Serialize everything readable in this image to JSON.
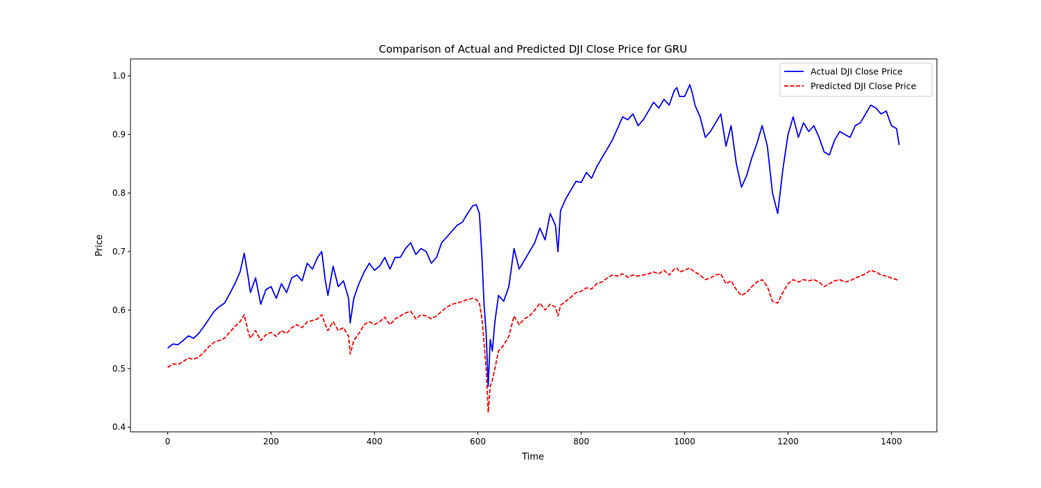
{
  "chart_data": {
    "type": "line",
    "title": "Comparison of Actual and Predicted DJI Close Price for GRU",
    "xlabel": "Time",
    "ylabel": "Price",
    "xlim": [
      -72,
      1488
    ],
    "ylim": [
      0.392,
      1.029
    ],
    "x_ticks": [
      0,
      200,
      400,
      600,
      800,
      1000,
      1200,
      1400
    ],
    "y_ticks": [
      0.4,
      0.5,
      0.6,
      0.7,
      0.8,
      0.9,
      1.0
    ],
    "y_tick_labels": [
      "0.4",
      "0.5",
      "0.6",
      "0.7",
      "0.8",
      "0.9",
      "1.0"
    ],
    "grid": false,
    "legend_position": "top-right",
    "series": [
      {
        "name": "Actual DJI Close Price",
        "color": "#0000ff",
        "style": "solid",
        "x": [
          0,
          10,
          20,
          30,
          40,
          50,
          60,
          70,
          80,
          90,
          100,
          110,
          120,
          130,
          140,
          148,
          155,
          160,
          170,
          180,
          190,
          200,
          210,
          220,
          230,
          240,
          250,
          260,
          270,
          280,
          290,
          298,
          305,
          310,
          320,
          330,
          340,
          350,
          353,
          360,
          370,
          380,
          390,
          400,
          410,
          420,
          430,
          440,
          450,
          460,
          470,
          480,
          490,
          500,
          510,
          520,
          530,
          540,
          550,
          560,
          570,
          580,
          590,
          597,
          603,
          608,
          612,
          616,
          620,
          624,
          628,
          633,
          640,
          650,
          660,
          670,
          680,
          690,
          700,
          710,
          720,
          730,
          740,
          750,
          755,
          760,
          770,
          780,
          790,
          800,
          810,
          820,
          830,
          840,
          850,
          860,
          870,
          880,
          890,
          900,
          910,
          920,
          930,
          940,
          950,
          960,
          970,
          980,
          985,
          990,
          1000,
          1010,
          1015,
          1020,
          1030,
          1040,
          1050,
          1060,
          1070,
          1080,
          1090,
          1100,
          1110,
          1120,
          1130,
          1140,
          1150,
          1160,
          1170,
          1180,
          1190,
          1200,
          1210,
          1220,
          1230,
          1240,
          1250,
          1260,
          1270,
          1280,
          1290,
          1300,
          1310,
          1320,
          1330,
          1340,
          1350,
          1360,
          1370,
          1380,
          1390,
          1400,
          1410,
          1415
        ],
        "y": [
          0.535,
          0.542,
          0.541,
          0.548,
          0.556,
          0.552,
          0.56,
          0.572,
          0.585,
          0.598,
          0.606,
          0.612,
          0.628,
          0.645,
          0.665,
          0.697,
          0.66,
          0.63,
          0.655,
          0.61,
          0.635,
          0.64,
          0.62,
          0.645,
          0.63,
          0.655,
          0.66,
          0.65,
          0.68,
          0.67,
          0.69,
          0.7,
          0.65,
          0.625,
          0.675,
          0.64,
          0.65,
          0.62,
          0.578,
          0.62,
          0.645,
          0.665,
          0.68,
          0.668,
          0.675,
          0.69,
          0.67,
          0.69,
          0.69,
          0.705,
          0.715,
          0.695,
          0.705,
          0.7,
          0.68,
          0.69,
          0.715,
          0.725,
          0.735,
          0.745,
          0.75,
          0.765,
          0.778,
          0.78,
          0.765,
          0.69,
          0.61,
          0.56,
          0.47,
          0.55,
          0.53,
          0.58,
          0.625,
          0.615,
          0.64,
          0.705,
          0.67,
          0.685,
          0.7,
          0.715,
          0.74,
          0.72,
          0.765,
          0.745,
          0.7,
          0.77,
          0.79,
          0.805,
          0.82,
          0.818,
          0.835,
          0.825,
          0.845,
          0.86,
          0.875,
          0.89,
          0.91,
          0.93,
          0.925,
          0.935,
          0.915,
          0.925,
          0.94,
          0.955,
          0.945,
          0.96,
          0.95,
          0.975,
          0.98,
          0.965,
          0.965,
          0.985,
          0.97,
          0.95,
          0.93,
          0.895,
          0.905,
          0.92,
          0.935,
          0.88,
          0.915,
          0.85,
          0.81,
          0.83,
          0.86,
          0.885,
          0.915,
          0.88,
          0.8,
          0.765,
          0.84,
          0.9,
          0.93,
          0.895,
          0.92,
          0.905,
          0.915,
          0.895,
          0.87,
          0.865,
          0.89,
          0.905,
          0.9,
          0.895,
          0.915,
          0.92,
          0.935,
          0.95,
          0.945,
          0.935,
          0.94,
          0.915,
          0.91,
          0.882
        ]
      },
      {
        "name": "Predicted DJI Close Price",
        "color": "#ff0000",
        "style": "dashed",
        "x": [
          0,
          10,
          20,
          30,
          40,
          50,
          60,
          70,
          80,
          90,
          100,
          110,
          120,
          130,
          140,
          148,
          155,
          160,
          170,
          180,
          190,
          200,
          210,
          220,
          230,
          240,
          250,
          260,
          270,
          280,
          290,
          298,
          305,
          310,
          320,
          330,
          340,
          350,
          353,
          360,
          370,
          380,
          390,
          400,
          410,
          420,
          430,
          440,
          450,
          460,
          470,
          480,
          490,
          500,
          510,
          520,
          530,
          540,
          550,
          560,
          570,
          580,
          590,
          597,
          603,
          608,
          612,
          616,
          620,
          624,
          628,
          633,
          640,
          650,
          660,
          670,
          680,
          690,
          700,
          710,
          720,
          730,
          740,
          750,
          755,
          760,
          770,
          780,
          790,
          800,
          810,
          820,
          830,
          840,
          850,
          860,
          870,
          880,
          890,
          900,
          910,
          920,
          930,
          940,
          950,
          960,
          970,
          980,
          985,
          990,
          1000,
          1010,
          1015,
          1020,
          1030,
          1040,
          1050,
          1060,
          1070,
          1080,
          1090,
          1100,
          1110,
          1120,
          1130,
          1140,
          1150,
          1160,
          1170,
          1180,
          1190,
          1200,
          1210,
          1220,
          1230,
          1240,
          1250,
          1260,
          1270,
          1280,
          1290,
          1300,
          1310,
          1320,
          1330,
          1340,
          1350,
          1360,
          1370,
          1380,
          1390,
          1400,
          1410,
          1415
        ],
        "y": [
          0.502,
          0.508,
          0.507,
          0.512,
          0.518,
          0.516,
          0.52,
          0.528,
          0.538,
          0.545,
          0.548,
          0.552,
          0.562,
          0.572,
          0.58,
          0.592,
          0.565,
          0.552,
          0.565,
          0.548,
          0.558,
          0.562,
          0.555,
          0.565,
          0.56,
          0.57,
          0.575,
          0.57,
          0.58,
          0.582,
          0.585,
          0.592,
          0.575,
          0.565,
          0.58,
          0.565,
          0.57,
          0.555,
          0.525,
          0.548,
          0.56,
          0.575,
          0.58,
          0.575,
          0.58,
          0.588,
          0.575,
          0.585,
          0.59,
          0.595,
          0.598,
          0.585,
          0.592,
          0.59,
          0.585,
          0.59,
          0.598,
          0.605,
          0.61,
          0.612,
          0.615,
          0.618,
          0.62,
          0.618,
          0.612,
          0.585,
          0.545,
          0.5,
          0.425,
          0.47,
          0.48,
          0.5,
          0.53,
          0.54,
          0.555,
          0.59,
          0.575,
          0.585,
          0.59,
          0.6,
          0.612,
          0.6,
          0.61,
          0.605,
          0.59,
          0.608,
          0.615,
          0.622,
          0.63,
          0.632,
          0.638,
          0.636,
          0.645,
          0.648,
          0.655,
          0.66,
          0.658,
          0.662,
          0.656,
          0.66,
          0.658,
          0.66,
          0.662,
          0.665,
          0.662,
          0.668,
          0.66,
          0.67,
          0.672,
          0.665,
          0.668,
          0.672,
          0.668,
          0.665,
          0.66,
          0.652,
          0.655,
          0.66,
          0.662,
          0.645,
          0.65,
          0.635,
          0.625,
          0.63,
          0.64,
          0.648,
          0.652,
          0.64,
          0.615,
          0.612,
          0.63,
          0.645,
          0.652,
          0.648,
          0.652,
          0.65,
          0.652,
          0.648,
          0.64,
          0.645,
          0.65,
          0.652,
          0.648,
          0.65,
          0.655,
          0.658,
          0.662,
          0.668,
          0.665,
          0.66,
          0.658,
          0.655,
          0.652,
          0.65
        ]
      }
    ]
  }
}
